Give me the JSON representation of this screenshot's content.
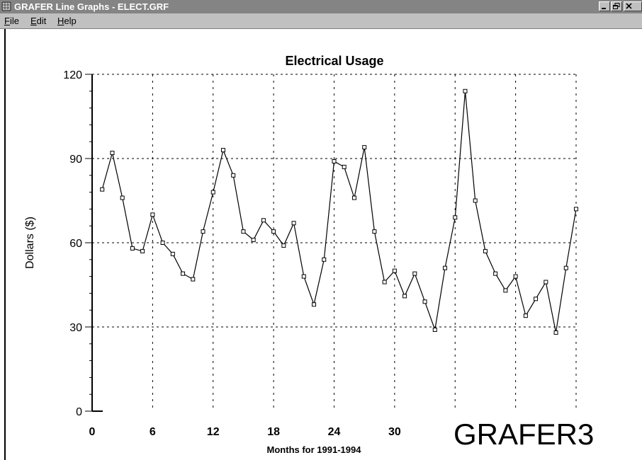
{
  "window": {
    "title": "GRAFER Line Graphs - ELECT.GRF"
  },
  "menu": [
    {
      "label": "File",
      "accel": "F",
      "rest": "ile"
    },
    {
      "label": "Edit",
      "accel": "E",
      "rest": "dit"
    },
    {
      "label": "Help",
      "accel": "H",
      "rest": "elp"
    }
  ],
  "watermark": "GRAFER3",
  "colors": {
    "titlebar": "#848484",
    "menubar": "#c0c0c0",
    "line": "#000000",
    "grid": "#000000"
  },
  "chart_data": {
    "type": "line",
    "title": "Electrical Usage",
    "xlabel": "Months for 1991-1994",
    "ylabel": "Dollars ($)",
    "xlim": [
      0,
      48
    ],
    "ylim": [
      0,
      120
    ],
    "x_ticks": [
      0,
      6,
      12,
      18,
      24,
      30
    ],
    "y_ticks": [
      0,
      30,
      60,
      90,
      120
    ],
    "grid": true,
    "series": [
      {
        "x": [
          1,
          2,
          3,
          4,
          5,
          6,
          7,
          8,
          9,
          10,
          11,
          12,
          13,
          14,
          15,
          16,
          17,
          18,
          19,
          20,
          21,
          22,
          23,
          24,
          25,
          26,
          27,
          28,
          29,
          30,
          31,
          32,
          33,
          34,
          35,
          36,
          37,
          38,
          39,
          40,
          41,
          42,
          43,
          44,
          45,
          46,
          47,
          48
        ],
        "values": [
          79,
          92,
          76,
          58,
          57,
          70,
          60,
          56,
          49,
          47,
          64,
          78,
          93,
          84,
          64,
          61,
          68,
          64,
          59,
          67,
          48,
          38,
          54,
          89,
          87,
          76,
          94,
          64,
          46,
          50,
          41,
          49,
          39,
          29,
          51,
          69,
          114,
          75,
          57,
          49,
          43,
          48,
          34,
          40,
          46,
          28,
          51,
          72
        ]
      }
    ]
  }
}
